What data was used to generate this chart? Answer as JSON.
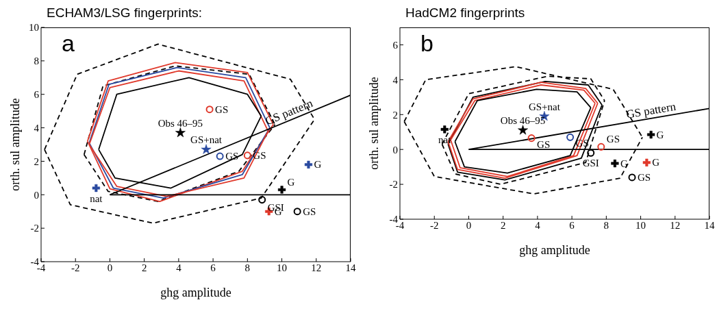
{
  "chart_data": [
    {
      "type": "scatter",
      "title": "ECHAM3/LSG fingerprints:",
      "xlabel": "ghg amplitude",
      "ylabel": "orth. sul amplitude",
      "xlim": [
        -4,
        14
      ],
      "xticks": [
        -4,
        -2,
        0,
        2,
        4,
        6,
        8,
        10,
        12,
        14
      ],
      "ylim": [
        -4,
        10
      ],
      "yticks": [
        -4,
        -2,
        0,
        2,
        4,
        6,
        8,
        10
      ],
      "annotations": [
        "a",
        {
          "text": "Obs 46–95",
          "x": 4.1,
          "y": 3.7
        },
        {
          "text": "GS+nat",
          "x": 5.6,
          "y": 2.7
        },
        {
          "text": "GS",
          "x": 5.8,
          "y": 5.1
        },
        {
          "text": "GS",
          "x": 6.4,
          "y": 2.3
        },
        {
          "text": "GS",
          "x": 8.0,
          "y": 2.35
        },
        {
          "text": "nat",
          "x": -0.8,
          "y": 0.4
        },
        {
          "text": "G",
          "x": 11.55,
          "y": 1.8
        },
        {
          "text": "G",
          "x": 10.0,
          "y": 0.3
        },
        {
          "text": "GSI",
          "x": 8.85,
          "y": -0.3
        },
        {
          "text": "G",
          "x": 9.25,
          "y": -1.0
        },
        {
          "text": "GS",
          "x": 10.9,
          "y": -1.0
        }
      ],
      "series": [
        {
          "type": "line",
          "color": "#000000",
          "line_style": "dashed",
          "marker": "none",
          "x": [
            -3.8,
            -1.9,
            2.8,
            10.5,
            11.9
          ],
          "values": [
            2.7,
            7.2,
            9.0,
            6.9,
            4.5
          ]
        },
        {
          "type": "line",
          "color": "#000000",
          "line_style": "dashed",
          "marker": "none",
          "x": [
            -3.8,
            -2.3,
            2.5,
            8.8,
            11.9
          ],
          "values": [
            2.7,
            -0.6,
            -1.7,
            -0.2,
            4.5
          ]
        },
        {
          "type": "line",
          "color": "#000000",
          "line_style": "dashed",
          "marker": "none",
          "x": [
            -1.5,
            -0.4,
            3.8,
            8.1,
            9.6
          ],
          "values": [
            2.4,
            6.5,
            7.7,
            7.2,
            4.2
          ]
        },
        {
          "type": "line",
          "color": "#000000",
          "line_style": "dashed",
          "marker": "none",
          "x": [
            -1.5,
            -0.1,
            2.8,
            7.5,
            9.6
          ],
          "values": [
            2.4,
            0.2,
            -0.4,
            1.4,
            4.2
          ]
        },
        {
          "type": "line",
          "color": "#e0392b",
          "line_style": "solid",
          "marker": "none",
          "x": [
            -1.3,
            -0.1,
            3.8,
            8.0,
            9.5
          ],
          "values": [
            3.2,
            6.8,
            7.9,
            7.3,
            4.2
          ]
        },
        {
          "type": "line",
          "color": "#e0392b",
          "line_style": "solid",
          "marker": "none",
          "x": [
            -1.3,
            0.0,
            2.9,
            7.7,
            9.5
          ],
          "values": [
            3.2,
            0.35,
            -0.4,
            1.4,
            4.2
          ]
        },
        {
          "type": "line",
          "color": "#2a4aa0",
          "line_style": "solid",
          "marker": "none",
          "x": [
            -1.2,
            -0.05,
            3.9,
            7.9,
            9.3
          ],
          "values": [
            3.1,
            6.6,
            7.6,
            7.0,
            4.0
          ]
        },
        {
          "type": "line",
          "color": "#2a4aa0",
          "line_style": "solid",
          "marker": "none",
          "x": [
            -1.2,
            0.2,
            3.1,
            7.7,
            9.3
          ],
          "values": [
            3.1,
            0.4,
            -0.2,
            1.2,
            4.0
          ]
        },
        {
          "type": "line",
          "color": "#e0392b",
          "line_style": "solid",
          "marker": "none",
          "x": [
            -1.2,
            0.0,
            4.0,
            7.8,
            9.2
          ],
          "values": [
            3.0,
            6.4,
            7.4,
            6.8,
            3.8
          ]
        },
        {
          "type": "line",
          "color": "#e0392b",
          "line_style": "solid",
          "marker": "none",
          "x": [
            -1.2,
            0.4,
            3.3,
            7.8,
            9.2
          ],
          "values": [
            3.0,
            0.5,
            -0.1,
            1.0,
            3.8
          ]
        },
        {
          "type": "line",
          "color": "#000000",
          "line_style": "solid",
          "marker": "none",
          "x": [
            -0.65,
            0.4,
            4.6,
            8.0,
            8.8
          ],
          "values": [
            2.7,
            6.0,
            7.0,
            6.0,
            4.7
          ]
        },
        {
          "type": "line",
          "color": "#000000",
          "line_style": "solid",
          "marker": "none",
          "x": [
            -0.65,
            0.3,
            3.55,
            7.7,
            8.8
          ],
          "values": [
            2.7,
            1.0,
            0.4,
            2.4,
            4.7
          ]
        },
        {
          "type": "line",
          "name": "GS pattern",
          "color": "#000000",
          "line_style": "solid",
          "marker": "none",
          "x": [
            0,
            14
          ],
          "values": [
            0,
            5.95
          ]
        },
        {
          "type": "line",
          "color": "#000000",
          "line_style": "solid",
          "marker": "none",
          "x": [
            0,
            14
          ],
          "values": [
            0,
            0
          ]
        },
        {
          "type": "scatter",
          "color": "#000000",
          "marker": "star",
          "x": [
            4.1
          ],
          "values": [
            3.7
          ]
        },
        {
          "type": "scatter",
          "color": "#2a4aa0",
          "marker": "star",
          "x": [
            5.6
          ],
          "values": [
            2.7
          ]
        },
        {
          "type": "scatter",
          "color": "#e0392b",
          "marker": "circle",
          "x": [
            5.8,
            8.0
          ],
          "values": [
            5.1,
            2.35
          ]
        },
        {
          "type": "scatter",
          "color": "#2a4aa0",
          "marker": "circle",
          "x": [
            6.4
          ],
          "values": [
            2.3
          ]
        },
        {
          "type": "scatter",
          "color": "#000000",
          "marker": "circle",
          "x": [
            8.85,
            10.9
          ],
          "values": [
            -0.3,
            -1.0
          ]
        },
        {
          "type": "scatter",
          "color": "#2a4aa0",
          "marker": "cross",
          "x": [
            -0.8,
            11.55
          ],
          "values": [
            0.4,
            1.8
          ]
        },
        {
          "type": "scatter",
          "color": "#000000",
          "marker": "cross",
          "x": [
            10.0
          ],
          "values": [
            0.3
          ]
        },
        {
          "type": "scatter",
          "color": "#e0392b",
          "marker": "cross",
          "x": [
            9.25
          ],
          "values": [
            -1.0
          ]
        }
      ]
    },
    {
      "type": "scatter",
      "title": "HadCM2 fingerprints",
      "xlabel": "ghg amplitude",
      "ylabel": "orth. sul amplitude",
      "xlim": [
        -4,
        14
      ],
      "xticks": [
        -4,
        -2,
        0,
        2,
        4,
        6,
        8,
        10,
        12,
        14
      ],
      "ylim": [
        -4,
        7
      ],
      "yticks": [
        -4,
        -2,
        0,
        2,
        4,
        6
      ],
      "annotations": [
        "b",
        {
          "text": "Obs 46–95",
          "x": 3.15,
          "y": 1.1
        },
        {
          "text": "GS+nat",
          "x": 4.4,
          "y": 1.9
        },
        {
          "text": "nat",
          "x": -1.4,
          "y": 1.15
        },
        {
          "text": "GS",
          "x": 3.65,
          "y": 0.65
        },
        {
          "text": "GS",
          "x": 5.9,
          "y": 0.7
        },
        {
          "text": "GS",
          "x": 7.7,
          "y": 0.15
        },
        {
          "text": "GSI",
          "x": 7.1,
          "y": -0.2
        },
        {
          "text": "G",
          "x": 8.5,
          "y": -0.8
        },
        {
          "text": "G",
          "x": 10.6,
          "y": 0.85
        },
        {
          "text": "G",
          "x": 10.35,
          "y": -0.75
        },
        {
          "text": "GS",
          "x": 9.5,
          "y": -1.6
        }
      ],
      "series": [
        {
          "type": "line",
          "color": "#000000",
          "line_style": "dashed",
          "marker": "none",
          "x": [
            -3.75,
            -2.5,
            2.75,
            8.4,
            10.1
          ],
          "values": [
            1.6,
            4.0,
            4.75,
            3.45,
            0.7
          ]
        },
        {
          "type": "line",
          "color": "#000000",
          "line_style": "dashed",
          "marker": "none",
          "x": [
            -3.75,
            -2.0,
            3.8,
            8.8,
            10.1
          ],
          "values": [
            1.6,
            -1.55,
            -2.55,
            -1.65,
            0.7
          ]
        },
        {
          "type": "line",
          "color": "#000000",
          "line_style": "dashed",
          "marker": "none",
          "x": [
            -1.55,
            0.0,
            4.6,
            7.1,
            7.9
          ],
          "values": [
            0.3,
            3.2,
            4.2,
            4.05,
            2.8
          ]
        },
        {
          "type": "line",
          "color": "#000000",
          "line_style": "dashed",
          "marker": "none",
          "x": [
            -1.55,
            -0.8,
            1.85,
            6.8,
            7.9
          ],
          "values": [
            0.3,
            -1.4,
            -2.0,
            -0.75,
            2.8
          ]
        },
        {
          "type": "line",
          "color": "#000000",
          "line_style": "solid",
          "marker": "none",
          "x": [
            -1.2,
            0.25,
            4.45,
            6.95,
            7.75
          ],
          "values": [
            0.3,
            3.0,
            3.9,
            3.7,
            2.55
          ]
        },
        {
          "type": "line",
          "color": "#000000",
          "line_style": "solid",
          "marker": "none",
          "x": [
            -1.2,
            -0.65,
            2.1,
            6.55,
            7.75
          ],
          "values": [
            0.3,
            -1.3,
            -1.75,
            -0.5,
            2.55
          ]
        },
        {
          "type": "line",
          "color": "#e0392b",
          "line_style": "solid",
          "marker": "none",
          "x": [
            -1.2,
            0.25,
            4.2,
            6.8,
            7.5
          ],
          "values": [
            0.45,
            2.9,
            3.85,
            3.5,
            2.65
          ]
        },
        {
          "type": "line",
          "color": "#e0392b",
          "line_style": "solid",
          "marker": "none",
          "x": [
            -1.2,
            -0.65,
            2.1,
            6.3,
            7.5
          ],
          "values": [
            0.45,
            -1.15,
            -1.65,
            -0.35,
            2.65
          ]
        },
        {
          "type": "line",
          "color": "#e0392b",
          "line_style": "solid",
          "marker": "none",
          "x": [
            -1.05,
            0.35,
            4.2,
            6.7,
            7.35
          ],
          "values": [
            0.55,
            2.8,
            3.7,
            3.4,
            2.65
          ]
        },
        {
          "type": "line",
          "color": "#e0392b",
          "line_style": "solid",
          "marker": "none",
          "x": [
            -1.05,
            -0.5,
            2.25,
            6.1,
            7.35
          ],
          "values": [
            0.55,
            -1.05,
            -1.55,
            -0.35,
            2.65
          ]
        },
        {
          "type": "line",
          "color": "#000000",
          "line_style": "solid",
          "marker": "none",
          "x": [
            -0.8,
            0.5,
            3.95,
            6.3,
            7.1
          ],
          "values": [
            0.45,
            2.8,
            3.45,
            3.3,
            2.4
          ]
        },
        {
          "type": "line",
          "color": "#000000",
          "line_style": "solid",
          "marker": "none",
          "x": [
            -0.8,
            -0.25,
            2.25,
            5.9,
            7.1
          ],
          "values": [
            0.45,
            -1.0,
            -1.35,
            -0.35,
            2.4
          ]
        },
        {
          "type": "line",
          "name": "GS pattern",
          "color": "#000000",
          "line_style": "solid",
          "marker": "none",
          "x": [
            0,
            14
          ],
          "values": [
            0,
            2.35
          ]
        },
        {
          "type": "line",
          "color": "#000000",
          "line_style": "solid",
          "marker": "none",
          "x": [
            0,
            14
          ],
          "values": [
            0,
            0
          ]
        },
        {
          "type": "scatter",
          "color": "#000000",
          "marker": "star",
          "x": [
            3.15
          ],
          "values": [
            1.1
          ]
        },
        {
          "type": "scatter",
          "color": "#2a4aa0",
          "marker": "star",
          "x": [
            4.4
          ],
          "values": [
            1.9
          ]
        },
        {
          "type": "scatter",
          "color": "#000000",
          "marker": "cross",
          "x": [
            -1.4,
            8.5,
            10.6
          ],
          "values": [
            1.15,
            -0.8,
            0.85
          ]
        },
        {
          "type": "scatter",
          "color": "#e0392b",
          "marker": "circle",
          "x": [
            3.65,
            7.7
          ],
          "values": [
            0.65,
            0.15
          ]
        },
        {
          "type": "scatter",
          "color": "#2a4aa0",
          "marker": "circle",
          "x": [
            5.9
          ],
          "values": [
            0.7
          ]
        },
        {
          "type": "scatter",
          "color": "#000000",
          "marker": "circle",
          "x": [
            7.1,
            9.5
          ],
          "values": [
            -0.2,
            -1.6
          ]
        },
        {
          "type": "scatter",
          "color": "#e0392b",
          "marker": "cross",
          "x": [
            10.35
          ],
          "values": [
            -0.75
          ]
        }
      ]
    }
  ]
}
